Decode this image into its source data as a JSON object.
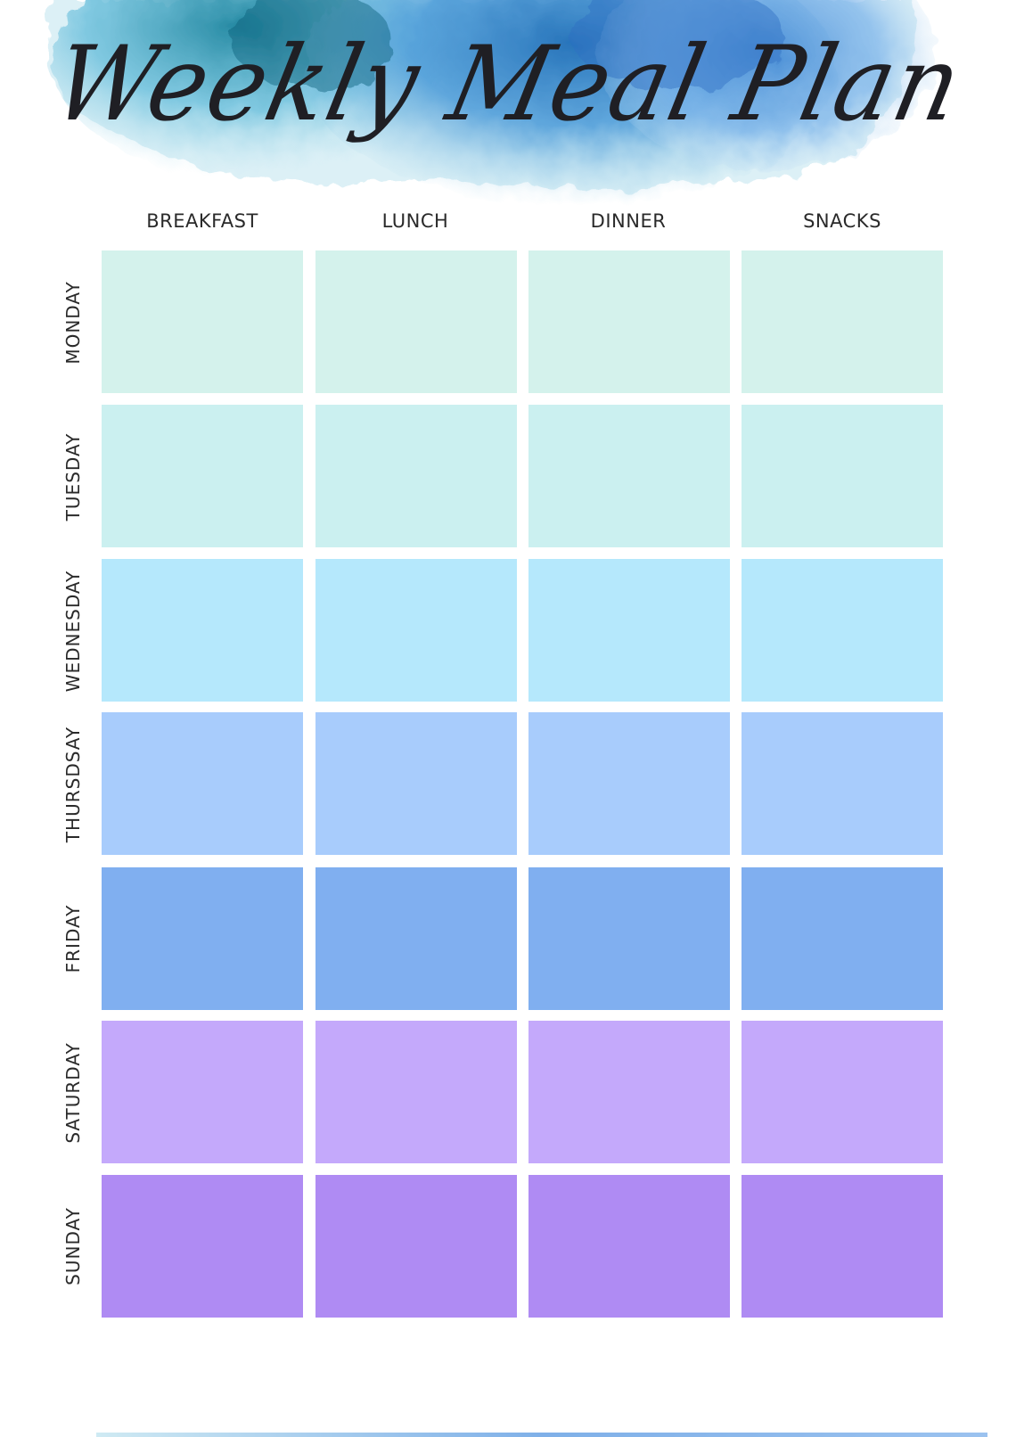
{
  "title": "Weekly Meal Plan",
  "meals": [
    "BREAKFAST",
    "LUNCH",
    "DINNER",
    "SNACKS"
  ],
  "days": [
    {
      "label": "MONDAY",
      "color": "#d4f2ec"
    },
    {
      "label": "TUESDAY",
      "color": "#cbf0f0"
    },
    {
      "label": "WEDNESDAY",
      "color": "#b5e8fc"
    },
    {
      "label": "THURSDSAY",
      "color": "#a8ccfc"
    },
    {
      "label": "FRIDAY",
      "color": "#80aff0"
    },
    {
      "label": "SATURDAY",
      "color": "#c4a9fb"
    },
    {
      "label": "SUNDAY",
      "color": "#af8bf3"
    }
  ],
  "colors": {
    "watercolor_dark": "#1f6fb8",
    "watercolor_mid": "#4a9ad8",
    "watercolor_light": "#9fd4ea",
    "text": "#2a2a2a"
  }
}
